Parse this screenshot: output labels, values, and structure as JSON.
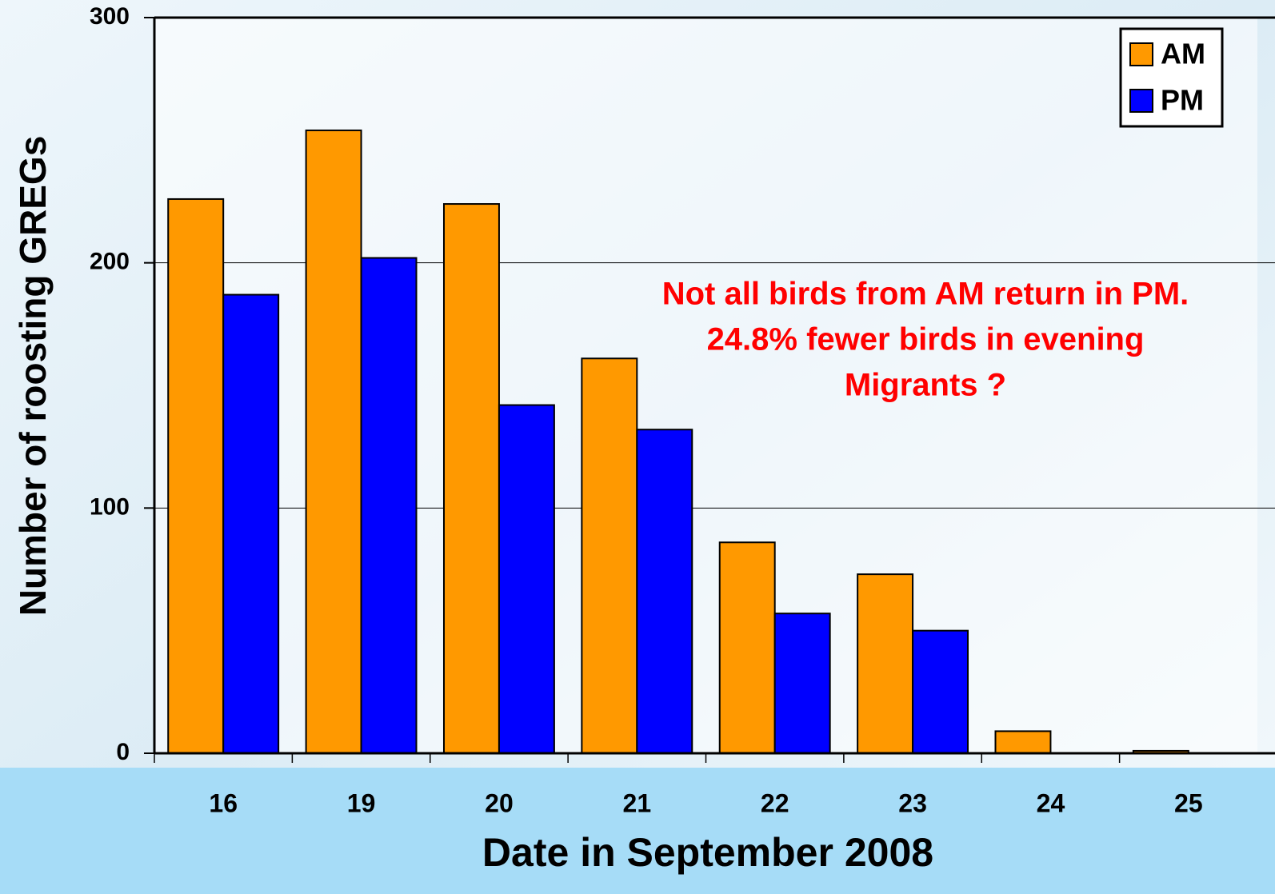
{
  "chart_data": {
    "type": "bar",
    "x_label": "Date in September 2008",
    "y_label": "Number of roosting GREGs",
    "annotation": [
      "Not all birds from AM return in PM.",
      "24.8% fewer birds in evening",
      "Migrants ?"
    ],
    "categories": [
      "16",
      "19",
      "20",
      "21",
      "22",
      "23",
      "24",
      "25"
    ],
    "series": [
      {
        "name": "AM",
        "color": "#ff9900",
        "values": [
          226,
          254,
          224,
          161,
          86,
          73,
          9,
          1
        ]
      },
      {
        "name": "PM",
        "color": "#0000ff",
        "values": [
          187,
          202,
          142,
          132,
          57,
          50,
          0,
          0
        ]
      }
    ],
    "ylim": [
      0,
      300
    ],
    "yticks": [
      0,
      100,
      200,
      300
    ],
    "grid": true,
    "legend": "top-right"
  }
}
